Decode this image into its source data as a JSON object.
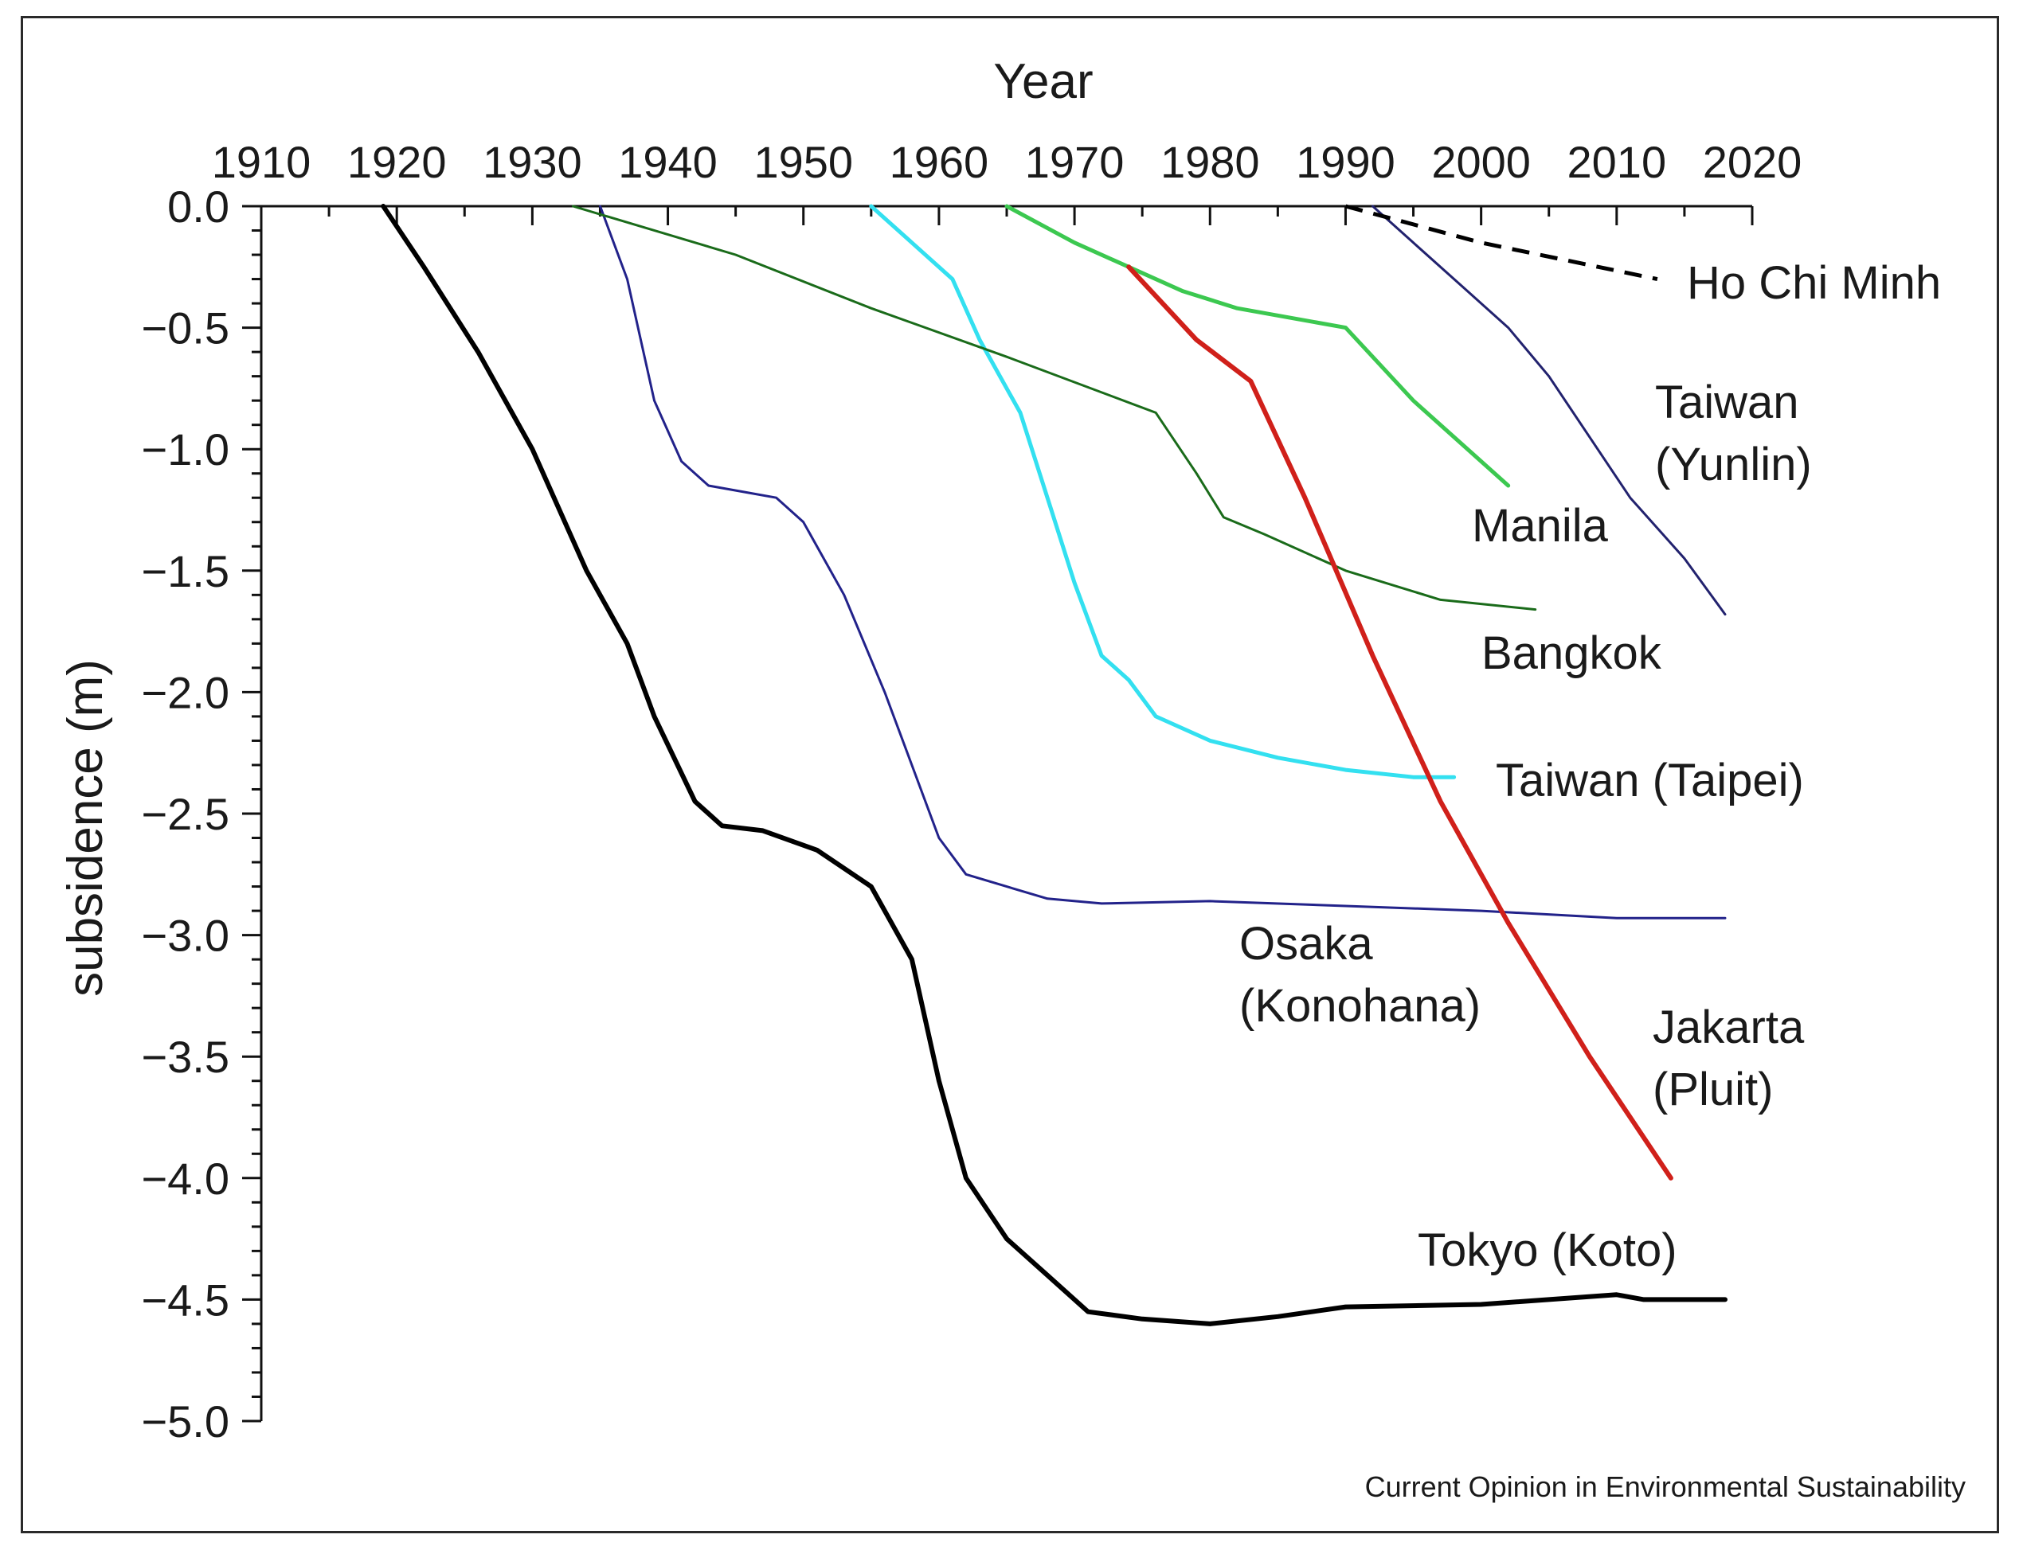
{
  "chart_data": {
    "type": "line",
    "title": "",
    "xlabel": "Year",
    "ylabel": "subsidence (m)",
    "xlim": [
      1910,
      2020
    ],
    "ylim": [
      -5.0,
      0.0
    ],
    "x_ticks": [
      1910,
      1920,
      1930,
      1940,
      1950,
      1960,
      1970,
      1980,
      1990,
      2000,
      2010,
      2020
    ],
    "y_ticks": [
      "0.0",
      "−0.5",
      "−1.0",
      "−1.5",
      "−2.0",
      "−2.5",
      "−3.0",
      "−3.5",
      "−4.0",
      "−4.5",
      "−5.0"
    ],
    "x_axis_position": "top",
    "grid": false,
    "legend": "none (direct labels)",
    "source": "Current Opinion in Environmental Sustainability",
    "series": [
      {
        "name": "Tokyo (Koto)",
        "label_lines": [
          "Tokyo (Koto)"
        ],
        "color": "#000000",
        "style": "solid",
        "points": [
          [
            1919,
            0.0
          ],
          [
            1922,
            -0.25
          ],
          [
            1926,
            -0.6
          ],
          [
            1930,
            -1.0
          ],
          [
            1934,
            -1.5
          ],
          [
            1937,
            -1.8
          ],
          [
            1939,
            -2.1
          ],
          [
            1942,
            -2.45
          ],
          [
            1944,
            -2.55
          ],
          [
            1947,
            -2.57
          ],
          [
            1951,
            -2.65
          ],
          [
            1955,
            -2.8
          ],
          [
            1958,
            -3.1
          ],
          [
            1960,
            -3.6
          ],
          [
            1962,
            -4.0
          ],
          [
            1965,
            -4.25
          ],
          [
            1968,
            -4.4
          ],
          [
            1971,
            -4.55
          ],
          [
            1975,
            -4.58
          ],
          [
            1980,
            -4.6
          ],
          [
            1985,
            -4.57
          ],
          [
            1990,
            -4.53
          ],
          [
            2000,
            -4.52
          ],
          [
            2005,
            -4.5
          ],
          [
            2010,
            -4.48
          ],
          [
            2012,
            -4.5
          ],
          [
            2018,
            -4.5
          ]
        ]
      },
      {
        "name": "Osaka (Konohana)",
        "label_lines": [
          "Osaka",
          "(Konohana)"
        ],
        "color": "#22228a",
        "style": "solid",
        "points": [
          [
            1935,
            0.0
          ],
          [
            1937,
            -0.3
          ],
          [
            1939,
            -0.8
          ],
          [
            1941,
            -1.05
          ],
          [
            1943,
            -1.15
          ],
          [
            1946,
            -1.18
          ],
          [
            1948,
            -1.2
          ],
          [
            1950,
            -1.3
          ],
          [
            1953,
            -1.6
          ],
          [
            1956,
            -2.0
          ],
          [
            1958,
            -2.3
          ],
          [
            1960,
            -2.6
          ],
          [
            1962,
            -2.75
          ],
          [
            1965,
            -2.8
          ],
          [
            1968,
            -2.85
          ],
          [
            1972,
            -2.87
          ],
          [
            1980,
            -2.86
          ],
          [
            1990,
            -2.88
          ],
          [
            2000,
            -2.9
          ],
          [
            2010,
            -2.93
          ],
          [
            2018,
            -2.93
          ]
        ]
      },
      {
        "name": "Taiwan (Taipei)",
        "label_lines": [
          "Taiwan (Taipei)"
        ],
        "color": "#33e0f0",
        "style": "solid",
        "points": [
          [
            1955,
            0.0
          ],
          [
            1958,
            -0.15
          ],
          [
            1961,
            -0.3
          ],
          [
            1963,
            -0.55
          ],
          [
            1966,
            -0.85
          ],
          [
            1968,
            -1.2
          ],
          [
            1970,
            -1.55
          ],
          [
            1972,
            -1.85
          ],
          [
            1974,
            -1.95
          ],
          [
            1976,
            -2.1
          ],
          [
            1980,
            -2.2
          ],
          [
            1985,
            -2.27
          ],
          [
            1990,
            -2.32
          ],
          [
            1995,
            -2.35
          ],
          [
            1998,
            -2.35
          ]
        ]
      },
      {
        "name": "Bangkok",
        "label_lines": [
          "Bangkok"
        ],
        "color": "#1a6b1a",
        "style": "solid",
        "points": [
          [
            1933,
            0.0
          ],
          [
            1945,
            -0.2
          ],
          [
            1955,
            -0.42
          ],
          [
            1965,
            -0.62
          ],
          [
            1976,
            -0.85
          ],
          [
            1979,
            -1.1
          ],
          [
            1981,
            -1.28
          ],
          [
            1984,
            -1.35
          ],
          [
            1990,
            -1.5
          ],
          [
            1997,
            -1.62
          ],
          [
            2004,
            -1.66
          ]
        ]
      },
      {
        "name": "Manila",
        "label_lines": [
          "Manila"
        ],
        "color": "#3cc850",
        "style": "solid",
        "points": [
          [
            1965,
            0.0
          ],
          [
            1970,
            -0.15
          ],
          [
            1974,
            -0.25
          ],
          [
            1978,
            -0.35
          ],
          [
            1982,
            -0.42
          ],
          [
            1990,
            -0.5
          ],
          [
            1995,
            -0.8
          ],
          [
            2002,
            -1.15
          ]
        ]
      },
      {
        "name": "Jakarta (Pluit)",
        "label_lines": [
          "Jakarta",
          "(Pluit)"
        ],
        "color": "#d0201a",
        "style": "solid",
        "points": [
          [
            1974,
            -0.25
          ],
          [
            1979,
            -0.55
          ],
          [
            1983,
            -0.72
          ],
          [
            1987,
            -1.2
          ],
          [
            1992,
            -1.85
          ],
          [
            1997,
            -2.45
          ],
          [
            2002,
            -2.95
          ],
          [
            2008,
            -3.5
          ],
          [
            2014,
            -4.0
          ]
        ]
      },
      {
        "name": "Taiwan (Yunlin)",
        "label_lines": [
          "Taiwan",
          "(Yunlin)"
        ],
        "color": "#22226e",
        "style": "solid",
        "points": [
          [
            1992,
            0.0
          ],
          [
            1995,
            -0.15
          ],
          [
            1999,
            -0.35
          ],
          [
            2002,
            -0.5
          ],
          [
            2005,
            -0.7
          ],
          [
            2008,
            -0.95
          ],
          [
            2011,
            -1.2
          ],
          [
            2015,
            -1.45
          ],
          [
            2018,
            -1.68
          ]
        ]
      },
      {
        "name": "Ho Chi Minh",
        "label_lines": [
          "Ho Chi Minh"
        ],
        "color": "#000000",
        "style": "dashed",
        "points": [
          [
            1990,
            0.0
          ],
          [
            2000,
            -0.15
          ],
          [
            2013,
            -0.3
          ]
        ]
      }
    ]
  }
}
